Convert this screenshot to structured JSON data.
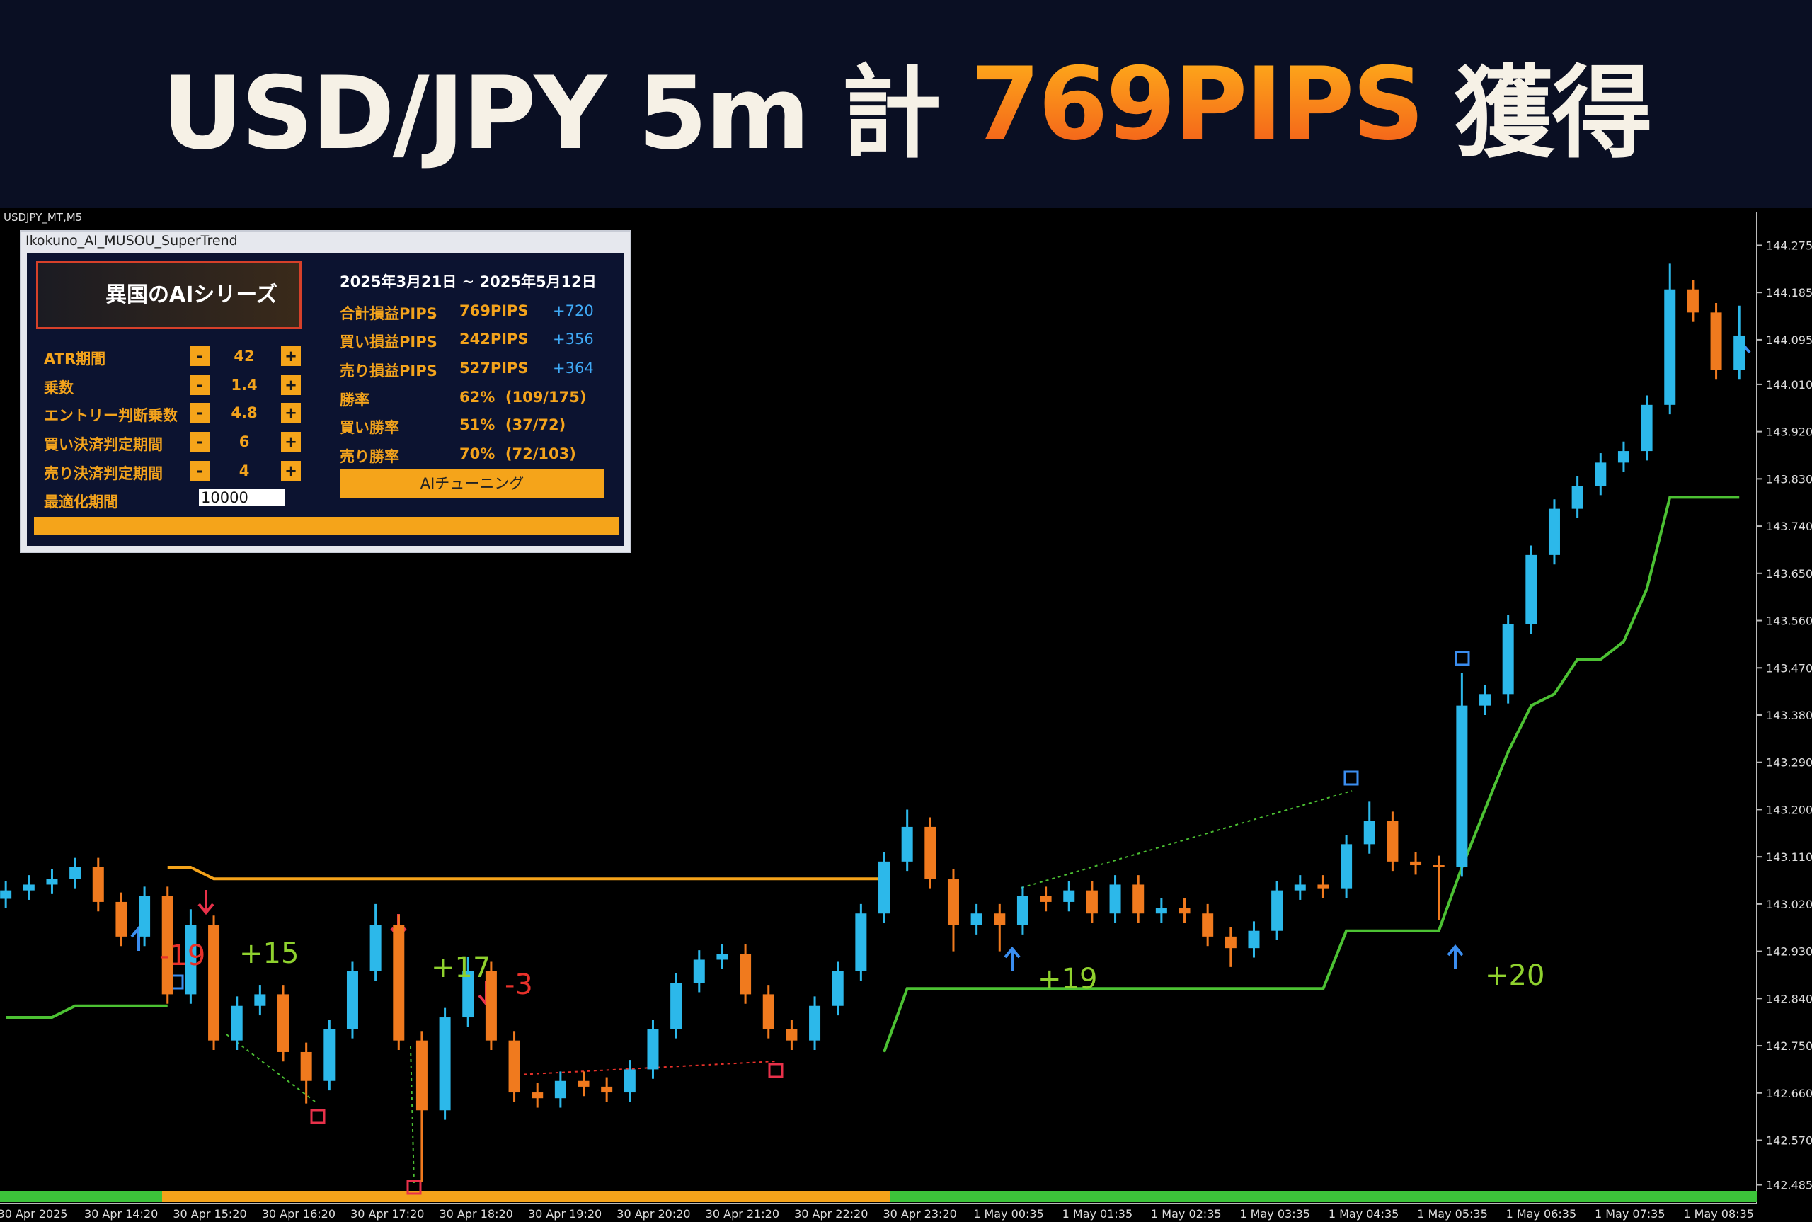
{
  "header": {
    "title": [
      "USD/JPY 5m 計",
      "769PIPS",
      "獲得"
    ]
  },
  "chart_data": {
    "type": "candlestick",
    "symbol_label": "USDJPY_MT,M5",
    "up_color": "#2cb8ea",
    "down_color": "#f07a1e",
    "ohlc": [
      [
        143.03,
        143.064,
        143.012,
        143.046
      ],
      [
        143.046,
        143.075,
        143.028,
        143.057
      ],
      [
        143.057,
        143.086,
        143.039,
        143.068
      ],
      [
        143.068,
        143.108,
        143.05,
        143.09
      ],
      [
        143.09,
        143.108,
        143.006,
        143.024
      ],
      [
        143.024,
        143.042,
        142.94,
        142.958
      ],
      [
        142.958,
        143.053,
        142.94,
        143.035
      ],
      [
        143.035,
        143.053,
        142.83,
        142.848
      ],
      [
        142.848,
        143.01,
        142.83,
        142.98
      ],
      [
        142.98,
        142.998,
        142.742,
        142.76
      ],
      [
        142.76,
        142.844,
        142.742,
        142.826
      ],
      [
        142.826,
        142.866,
        142.808,
        142.848
      ],
      [
        142.848,
        142.866,
        142.72,
        142.738
      ],
      [
        142.738,
        142.756,
        142.64,
        142.683
      ],
      [
        142.683,
        142.8,
        142.665,
        142.782
      ],
      [
        142.782,
        142.91,
        142.764,
        142.892
      ],
      [
        142.892,
        143.02,
        142.874,
        142.98
      ],
      [
        142.98,
        143.0,
        142.742,
        142.76
      ],
      [
        142.76,
        142.778,
        142.49,
        142.627
      ],
      [
        142.627,
        142.822,
        142.609,
        142.804
      ],
      [
        142.804,
        142.92,
        142.786,
        142.892
      ],
      [
        142.892,
        142.91,
        142.742,
        142.76
      ],
      [
        142.76,
        142.778,
        142.643,
        142.661
      ],
      [
        142.661,
        142.679,
        142.632,
        142.65
      ],
      [
        142.65,
        142.701,
        142.632,
        142.683
      ],
      [
        142.683,
        142.701,
        142.654,
        142.672
      ],
      [
        142.672,
        142.69,
        142.643,
        142.661
      ],
      [
        142.661,
        142.723,
        142.643,
        142.705
      ],
      [
        142.705,
        142.8,
        142.687,
        142.782
      ],
      [
        142.782,
        142.888,
        142.764,
        142.87
      ],
      [
        142.87,
        142.932,
        142.852,
        142.914
      ],
      [
        142.914,
        142.943,
        142.896,
        142.925
      ],
      [
        142.925,
        142.943,
        142.83,
        142.848
      ],
      [
        142.848,
        142.866,
        142.764,
        142.782
      ],
      [
        142.782,
        142.8,
        142.742,
        142.76
      ],
      [
        142.76,
        142.844,
        142.742,
        142.826
      ],
      [
        142.826,
        142.91,
        142.808,
        142.892
      ],
      [
        142.892,
        143.02,
        142.874,
        143.002
      ],
      [
        143.002,
        143.119,
        142.984,
        143.101
      ],
      [
        143.101,
        143.2,
        143.083,
        143.167
      ],
      [
        143.167,
        143.185,
        143.05,
        143.068
      ],
      [
        143.068,
        143.086,
        142.93,
        142.98
      ],
      [
        142.98,
        143.02,
        142.962,
        143.002
      ],
      [
        143.002,
        143.02,
        142.93,
        142.98
      ],
      [
        142.98,
        143.053,
        142.962,
        143.035
      ],
      [
        143.035,
        143.053,
        143.006,
        143.024
      ],
      [
        143.024,
        143.064,
        143.006,
        143.046
      ],
      [
        143.046,
        143.064,
        142.984,
        143.002
      ],
      [
        143.002,
        143.075,
        142.984,
        143.057
      ],
      [
        143.057,
        143.075,
        142.984,
        143.002
      ],
      [
        143.002,
        143.031,
        142.984,
        143.013
      ],
      [
        143.013,
        143.031,
        142.984,
        143.002
      ],
      [
        143.002,
        143.02,
        142.94,
        142.958
      ],
      [
        142.958,
        142.976,
        142.9,
        142.936
      ],
      [
        142.936,
        142.987,
        142.918,
        142.969
      ],
      [
        142.969,
        143.064,
        142.951,
        143.046
      ],
      [
        143.046,
        143.075,
        143.028,
        143.057
      ],
      [
        143.057,
        143.075,
        143.032,
        143.05
      ],
      [
        143.05,
        143.152,
        143.032,
        143.134
      ],
      [
        143.134,
        143.215,
        143.116,
        143.178
      ],
      [
        143.178,
        143.196,
        143.083,
        143.101
      ],
      [
        143.101,
        143.119,
        143.076,
        143.094
      ],
      [
        143.094,
        143.112,
        142.99,
        143.09
      ],
      [
        143.09,
        143.46,
        143.072,
        143.398
      ],
      [
        143.398,
        143.438,
        143.38,
        143.42
      ],
      [
        143.42,
        143.571,
        143.402,
        143.553
      ],
      [
        143.553,
        143.703,
        143.535,
        143.685
      ],
      [
        143.685,
        143.791,
        143.667,
        143.773
      ],
      [
        143.773,
        143.835,
        143.755,
        143.817
      ],
      [
        143.817,
        143.879,
        143.799,
        143.861
      ],
      [
        143.861,
        143.901,
        143.843,
        143.883
      ],
      [
        143.883,
        143.989,
        143.865,
        143.971
      ],
      [
        143.971,
        144.24,
        143.953,
        144.191
      ],
      [
        144.191,
        144.209,
        144.129,
        144.147
      ],
      [
        144.147,
        144.165,
        144.019,
        144.037
      ],
      [
        144.037,
        144.16,
        144.019,
        144.103
      ]
    ],
    "supertrend": {
      "up": {
        "color": "#4cc133",
        "values": [
          142.804,
          142.804,
          142.804,
          142.826,
          142.826,
          142.826,
          142.826,
          142.826,
          null,
          null,
          null,
          null,
          null,
          null,
          null,
          null,
          null,
          null,
          null,
          null,
          null,
          null,
          null,
          null,
          null,
          null,
          null,
          null,
          null,
          null,
          null,
          null,
          null,
          null,
          null,
          null,
          null,
          null,
          142.738,
          142.859,
          142.859,
          142.859,
          142.859,
          142.859,
          142.859,
          142.859,
          142.859,
          142.859,
          142.859,
          142.859,
          142.859,
          142.859,
          142.859,
          142.859,
          142.859,
          142.859,
          142.859,
          142.859,
          142.969,
          142.969,
          142.969,
          142.969,
          142.969,
          143.09,
          143.2,
          143.31,
          143.398,
          143.42,
          143.486,
          143.486,
          143.52,
          143.62,
          143.795,
          143.795,
          143.795,
          143.795
        ]
      },
      "down": {
        "color": "#f5a31a",
        "values": [
          null,
          null,
          null,
          null,
          null,
          null,
          null,
          143.09,
          143.09,
          143.068,
          143.068,
          143.068,
          143.068,
          143.068,
          143.068,
          143.068,
          143.068,
          143.068,
          143.068,
          143.068,
          143.068,
          143.068,
          143.068,
          143.068,
          143.068,
          143.068,
          143.068,
          143.068,
          143.068,
          143.068,
          143.068,
          143.068,
          143.068,
          143.068,
          143.068,
          143.068,
          143.068,
          143.068,
          143.068,
          null,
          null,
          null,
          null,
          null,
          null,
          null,
          null,
          null,
          null,
          null,
          null,
          null,
          null,
          null,
          null,
          null,
          null,
          null,
          null,
          null,
          null,
          null,
          null,
          null,
          null,
          null,
          null,
          null,
          null,
          null,
          null,
          null,
          null,
          null,
          null,
          null
        ]
      }
    },
    "ylim": [
      142.452,
      144.339
    ],
    "yticks": [
      {
        "value": 144.275,
        "label": "144.275"
      },
      {
        "value": 144.185,
        "label": "144.185"
      },
      {
        "value": 144.095,
        "label": "144.095"
      },
      {
        "value": 144.01,
        "label": "144.010"
      },
      {
        "value": 143.92,
        "label": "143.920"
      },
      {
        "value": 143.83,
        "label": "143.830"
      },
      {
        "value": 143.74,
        "label": "143.740"
      },
      {
        "value": 143.65,
        "label": "143.650"
      },
      {
        "value": 143.56,
        "label": "143.560"
      },
      {
        "value": 143.47,
        "label": "143.470"
      },
      {
        "value": 143.38,
        "label": "143.380"
      },
      {
        "value": 143.29,
        "label": "143.290"
      },
      {
        "value": 143.2,
        "label": "143.200"
      },
      {
        "value": 143.11,
        "label": "143.110"
      },
      {
        "value": 143.02,
        "label": "143.020"
      },
      {
        "value": 142.93,
        "label": "142.930"
      },
      {
        "value": 142.84,
        "label": "142.840"
      },
      {
        "value": 142.75,
        "label": "142.750"
      },
      {
        "value": 142.66,
        "label": "142.660"
      },
      {
        "value": 142.57,
        "label": "142.570"
      },
      {
        "value": 142.485,
        "label": "142.485"
      }
    ],
    "x_labels": [
      "30 Apr 2025",
      "30 Apr 14:20",
      "30 Apr 15:20",
      "30 Apr 16:20",
      "30 Apr 17:20",
      "30 Apr 18:20",
      "30 Apr 19:20",
      "30 Apr 20:20",
      "30 Apr 21:20",
      "30 Apr 22:20",
      "30 Apr 23:20",
      "1 May 00:35",
      "1 May 01:35",
      "1 May 02:35",
      "1 May 03:35",
      "1 May 04:35",
      "1 May 05:35",
      "1 May 06:35",
      "1 May 07:35",
      "1 May 08:35"
    ],
    "annotations": [
      {
        "text": "-19",
        "color": "#e8312a"
      },
      {
        "text": "+15",
        "color": "#8fd12e"
      },
      {
        "text": "+17",
        "color": "#8fd12e"
      },
      {
        "text": "-3",
        "color": "#e8312a"
      },
      {
        "text": "+19",
        "color": "#8fd12e"
      },
      {
        "text": "+20",
        "color": "#8fd12e"
      }
    ]
  },
  "panel": {
    "window_title": "Ikokuno_AI_MUSOU_SuperTrend",
    "logo_text": "異国のAIシリーズ",
    "minus": "-",
    "plus": "+",
    "params": [
      [
        "ATR期間",
        "42"
      ],
      [
        "乗数",
        "1.4"
      ],
      [
        "エントリー判断乗数",
        "4.8"
      ],
      [
        "買い決済判定期間",
        "6"
      ],
      [
        "売り決済判定期間",
        "4"
      ]
    ],
    "optimize": {
      "label": "最適化期間",
      "value": "10000"
    },
    "period": "2025年3月21日 ~ 2025年5月12日",
    "stats": [
      [
        "合計損益PIPS",
        "769PIPS",
        "+720"
      ],
      [
        "買い損益PIPS",
        "242PIPS",
        "+356"
      ],
      [
        "売り損益PIPS",
        "527PIPS",
        "+364"
      ],
      [
        "勝率",
        "62%  (109/175)"
      ],
      [
        "買い勝率",
        "51%  (37/72)"
      ],
      [
        "売り勝率",
        "70%  (72/103)"
      ]
    ],
    "button": "AIチューニング"
  }
}
